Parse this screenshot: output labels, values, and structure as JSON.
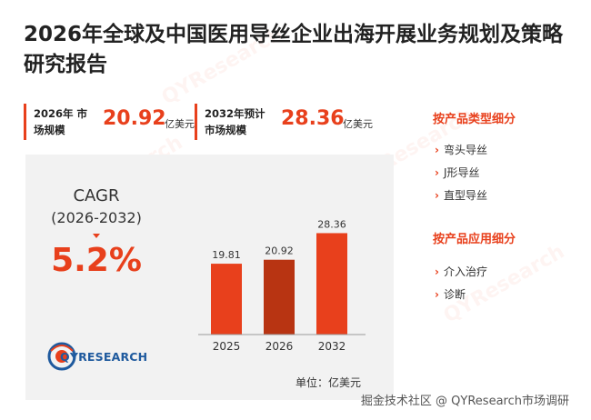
{
  "title": "2026年全球及中国医用导丝企业出海开展业务规划及策略研究报告",
  "stats": [
    {
      "label": "2026年 市场规模",
      "value": "20.92",
      "unit": "亿美元"
    },
    {
      "label": "2032年预计 市场规模",
      "value": "28.36",
      "unit": "亿美元"
    }
  ],
  "cagr": {
    "label": "CAGR",
    "range": "(2026-2032)",
    "value": "5.2%"
  },
  "logo_text": "QYRESEARCH",
  "unit_label": "单位：亿美元",
  "sidebar": {
    "type_heading": "按产品类型细分",
    "type_items": [
      "弯头导丝",
      "J形导丝",
      "直型导丝"
    ],
    "app_heading": "按产品应用细分",
    "app_items": [
      "介入治疗",
      "诊断"
    ]
  },
  "footer": "掘金技术社区 @ QYResearch市场调研",
  "colors": {
    "accent": "#e8401c",
    "bar": "#e8401c",
    "bar_highlight": "#b83412",
    "logo": "#1f5a9e"
  },
  "chart_data": {
    "type": "bar",
    "categories": [
      "2025",
      "2026",
      "2032"
    ],
    "values": [
      19.81,
      20.92,
      28.36
    ],
    "data_labels": [
      "19.81",
      "20.92",
      "28.36"
    ],
    "highlight_category": "2026",
    "ylim": [
      0,
      30
    ],
    "grid": false,
    "title": "",
    "xlabel": "",
    "ylabel": ""
  }
}
